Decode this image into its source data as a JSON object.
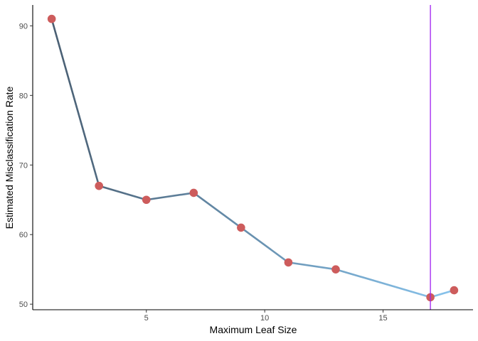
{
  "chart_data": {
    "type": "line",
    "title": "",
    "xlabel": "Maximum Leaf Size",
    "ylabel": "Estimated Misclassification Rate",
    "x": [
      1,
      3,
      5,
      7,
      9,
      11,
      13,
      17,
      18
    ],
    "y": [
      91,
      67,
      65,
      66,
      61,
      56,
      55,
      51,
      52
    ],
    "xlim": [
      0.2,
      18.8
    ],
    "ylim": [
      49.2,
      93
    ],
    "xticks": [
      5,
      10,
      15
    ],
    "yticks": [
      50,
      60,
      70,
      80,
      90
    ],
    "grid": false,
    "legend": "none",
    "vline_x": 17,
    "colors": {
      "points": "#cd5c5c",
      "line_start": "#4a5f73",
      "line_end": "#87c3ec",
      "vline": "#a020f0",
      "axis": "#000000",
      "tick_text": "#4d4d4d"
    }
  }
}
